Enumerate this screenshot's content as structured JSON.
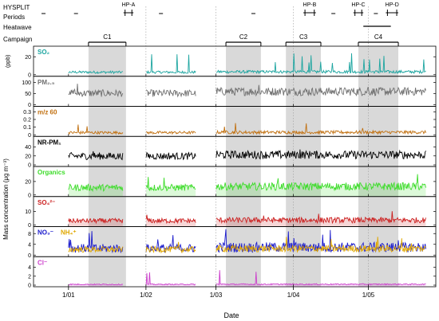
{
  "header": {
    "hysplit_label": "HYSPLIT",
    "periods_label": "Periods",
    "heatwave_label": "Heatwave",
    "campaign_label": "Campaign"
  },
  "chart_data": {
    "type": "line",
    "xlabel": "Date",
    "ylabel_shared": "Mass concentration (μg m⁻³)",
    "x_range": [
      "2016-12-18",
      "2017-05-28"
    ],
    "x_ticks": [
      {
        "date": "2017-01-01",
        "label": "1/01"
      },
      {
        "date": "2017-02-01",
        "label": "1/02"
      },
      {
        "date": "2017-03-01",
        "label": "1/03"
      },
      {
        "date": "2017-04-01",
        "label": "1/04"
      },
      {
        "date": "2017-05-01",
        "label": "1/05"
      }
    ],
    "month_lines": [
      "2017-02-01",
      "2017-03-01",
      "2017-04-01",
      "2017-05-01"
    ],
    "campaigns": [
      {
        "label": "C1",
        "start": "2017-01-09",
        "end": "2017-01-24"
      },
      {
        "label": "C2",
        "start": "2017-03-05",
        "end": "2017-03-19"
      },
      {
        "label": "C3",
        "start": "2017-03-29",
        "end": "2017-04-12"
      },
      {
        "label": "C4",
        "start": "2017-04-27",
        "end": "2017-05-13"
      }
    ],
    "hp_periods": [
      {
        "label": "HP-A",
        "start": "2017-01-23",
        "end": "2017-01-27"
      },
      {
        "label": "HP-B",
        "start": "2017-04-05",
        "end": "2017-04-10"
      },
      {
        "label": "HP-C",
        "start": "2017-04-25",
        "end": "2017-04-29"
      },
      {
        "label": "HP-D",
        "start": "2017-05-08",
        "end": "2017-05-13"
      }
    ],
    "hysplit_marks": [
      "2016-12-22",
      "2017-01-04",
      "2017-02-07",
      "2017-03-16",
      "2017-04-17",
      "2017-05-04"
    ],
    "heatwave": {
      "start": "2017-04-29",
      "end": "2017-05-10"
    },
    "panels": [
      {
        "key": "so2",
        "label": "SO₂",
        "unit": "(ppb)",
        "color": "#1ca5a0",
        "ylim": [
          0,
          30
        ],
        "ticks": [
          0,
          20
        ],
        "base": 2.5,
        "noise": 1.4,
        "spikes": 20,
        "spike_max": 22,
        "shade": false
      },
      {
        "key": "pm25",
        "label": "PM₂.₅",
        "color": "#707070",
        "ylim": [
          0,
          120
        ],
        "ticks": [
          0,
          50,
          100
        ],
        "base": 48,
        "noise": 16,
        "spikes": 6,
        "spike_max": 35,
        "shade": false
      },
      {
        "key": "mz60",
        "label": "m/z 60",
        "color": "#c17010",
        "ylim": [
          0,
          0.35
        ],
        "ticks": [
          0,
          0.1,
          0.2,
          0.3
        ],
        "base": 0.025,
        "noise": 0.018,
        "spikes": 8,
        "spike_max": 0.12,
        "shade": false
      },
      {
        "key": "nrpm1",
        "label": "NR-PM₁",
        "color": "#000000",
        "ylim": [
          0,
          60
        ],
        "ticks": [
          0,
          20,
          40
        ],
        "base": 18,
        "noise": 8,
        "spikes": 4,
        "spike_max": 18,
        "shade": false
      },
      {
        "key": "org",
        "label": "Organics",
        "color": "#3ddc2a",
        "ylim": [
          0,
          40
        ],
        "ticks": [
          0,
          20
        ],
        "base": 10,
        "noise": 5,
        "spikes": 4,
        "spike_max": 20,
        "shade": true
      },
      {
        "key": "so4",
        "label": "SO₄²⁻",
        "color": "#cc2020",
        "ylim": [
          0,
          20
        ],
        "ticks": [
          0,
          10
        ],
        "base": 2.8,
        "noise": 1.8,
        "spikes": 4,
        "spike_max": 6,
        "shade": true
      },
      {
        "key": "no3",
        "label": "NO₃⁻",
        "label2": "NH₄⁺",
        "color": "#1a1acc",
        "color2": "#e0a800",
        "ylim": [
          0,
          10
        ],
        "ticks": [
          0,
          4,
          8
        ],
        "base": 2.2,
        "noise": 1.6,
        "spikes": 14,
        "spike_max": 6,
        "shade": false
      },
      {
        "key": "cl",
        "label": "Cl⁻",
        "color": "#cc40cc",
        "ylim": [
          0,
          6
        ],
        "ticks": [
          0,
          2,
          4
        ],
        "base": 0.15,
        "noise": 0.12,
        "spikes": 6,
        "spike_max": 4,
        "shade": true
      }
    ],
    "data_gaps": [
      [
        "2017-01-23",
        "2017-02-01"
      ],
      [
        "2017-02-21",
        "2017-03-01"
      ]
    ],
    "grid": false,
    "legend": "none"
  }
}
